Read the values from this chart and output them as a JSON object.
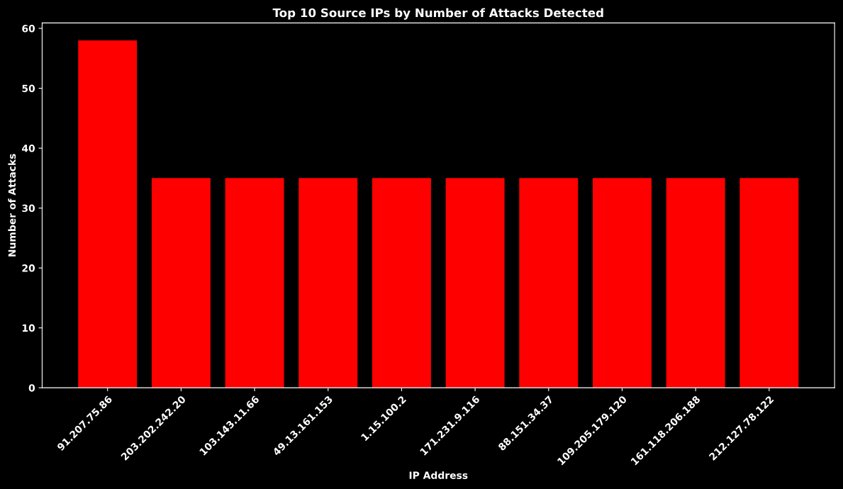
{
  "chart_data": {
    "type": "bar",
    "title": "Top 10 Source IPs by Number of Attacks Detected",
    "xlabel": "IP Address",
    "ylabel": "Number of Attacks",
    "categories": [
      "91.207.75.86",
      "203.202.242.20",
      "103.143.11.66",
      "49.13.161.153",
      "1.15.100.2",
      "171.231.9.116",
      "88.151.34.37",
      "109.205.179.120",
      "161.118.206.188",
      "212.127.78.122"
    ],
    "values": [
      58,
      35,
      35,
      35,
      35,
      35,
      35,
      35,
      35,
      35
    ],
    "color": "#ff0000",
    "ylim": [
      0,
      60.9
    ],
    "yticks": [
      0,
      10,
      20,
      30,
      40,
      50,
      60
    ],
    "grid": false,
    "legend": false
  }
}
